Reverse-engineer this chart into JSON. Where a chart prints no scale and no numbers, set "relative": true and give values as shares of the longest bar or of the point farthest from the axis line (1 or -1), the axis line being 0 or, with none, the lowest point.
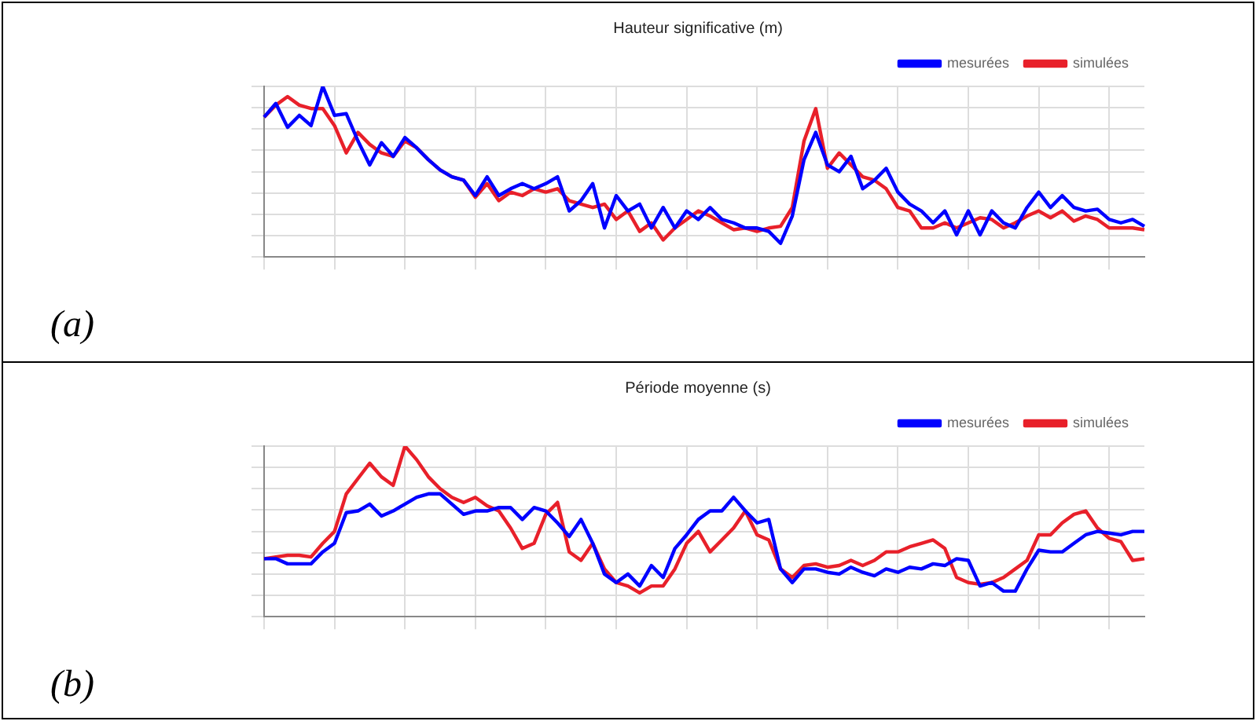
{
  "chart_data": [
    {
      "type": "line",
      "title": "Hauteur significative (m)",
      "relative": true,
      "grid": true,
      "legend": "top right",
      "annotations": [
        "(a)"
      ],
      "categories": [
        null,
        null,
        null,
        null,
        null,
        null,
        null,
        null,
        null,
        null,
        null,
        null,
        null,
        null,
        null,
        null,
        null,
        null,
        null,
        null,
        null,
        null,
        null,
        null,
        null,
        null,
        null,
        null,
        null,
        null,
        null,
        null,
        null,
        null,
        null,
        null,
        null,
        null,
        null,
        null,
        null,
        null,
        null,
        null,
        null,
        null,
        null,
        null,
        null,
        null,
        null,
        null,
        null,
        null,
        null,
        null,
        null,
        null,
        null,
        null,
        null,
        null,
        null,
        null,
        null,
        null,
        null,
        null,
        null,
        null,
        null,
        null,
        null,
        null,
        null,
        null
      ],
      "series": [
        {
          "name": "mesurées",
          "color": "#0000ff",
          "values": [
            0.82,
            0.9,
            0.76,
            0.83,
            0.77,
            1.0,
            0.83,
            0.84,
            0.68,
            0.54,
            0.67,
            0.59,
            0.7,
            0.64,
            0.57,
            0.51,
            0.47,
            0.45,
            0.36,
            0.47,
            0.36,
            0.4,
            0.43,
            0.4,
            0.43,
            0.47,
            0.27,
            0.33,
            0.43,
            0.17,
            0.36,
            0.27,
            0.31,
            0.17,
            0.29,
            0.17,
            0.27,
            0.22,
            0.29,
            0.22,
            0.2,
            0.17,
            0.17,
            0.15,
            0.08,
            0.24,
            0.57,
            0.73,
            0.54,
            0.5,
            0.59,
            0.4,
            0.45,
            0.52,
            0.38,
            0.31,
            0.27,
            0.2,
            0.27,
            0.13,
            0.27,
            0.13,
            0.27,
            0.2,
            0.17,
            0.29,
            0.38,
            0.29,
            0.36,
            0.29,
            0.27,
            0.28,
            0.22,
            0.2,
            0.22,
            0.18
          ]
        },
        {
          "name": "simulées",
          "color": "#e8202a",
          "values": [
            0.82,
            0.89,
            0.94,
            0.89,
            0.87,
            0.87,
            0.77,
            0.61,
            0.73,
            0.66,
            0.61,
            0.59,
            0.68,
            0.64,
            0.57,
            0.51,
            0.47,
            0.45,
            0.35,
            0.43,
            0.33,
            0.38,
            0.36,
            0.4,
            0.38,
            0.4,
            0.33,
            0.31,
            0.29,
            0.31,
            0.22,
            0.27,
            0.15,
            0.2,
            0.1,
            0.17,
            0.22,
            0.27,
            0.24,
            0.2,
            0.16,
            0.17,
            0.15,
            0.17,
            0.18,
            0.29,
            0.68,
            0.87,
            0.52,
            0.61,
            0.54,
            0.47,
            0.45,
            0.4,
            0.29,
            0.27,
            0.17,
            0.17,
            0.2,
            0.17,
            0.2,
            0.23,
            0.22,
            0.17,
            0.2,
            0.24,
            0.27,
            0.23,
            0.27,
            0.21,
            0.24,
            0.22,
            0.17,
            0.17,
            0.17,
            0.16
          ]
        }
      ]
    },
    {
      "type": "line",
      "title": "Période moyenne (s)",
      "relative": true,
      "grid": true,
      "legend": "top right",
      "annotations": [
        "(b)"
      ],
      "categories": [
        null,
        null,
        null,
        null,
        null,
        null,
        null,
        null,
        null,
        null,
        null,
        null,
        null,
        null,
        null,
        null,
        null,
        null,
        null,
        null,
        null,
        null,
        null,
        null,
        null,
        null,
        null,
        null,
        null,
        null,
        null,
        null,
        null,
        null,
        null,
        null,
        null,
        null,
        null,
        null,
        null,
        null,
        null,
        null,
        null,
        null,
        null,
        null,
        null,
        null,
        null,
        null,
        null,
        null,
        null,
        null,
        null,
        null,
        null,
        null,
        null,
        null,
        null,
        null,
        null,
        null,
        null,
        null,
        null,
        null,
        null,
        null,
        null,
        null,
        null,
        null
      ],
      "series": [
        {
          "name": "mesurées",
          "color": "#0000ff",
          "values": [
            0.34,
            0.34,
            0.31,
            0.31,
            0.31,
            0.38,
            0.43,
            0.61,
            0.62,
            0.66,
            0.59,
            0.62,
            0.66,
            0.7,
            0.72,
            0.72,
            0.66,
            0.6,
            0.62,
            0.62,
            0.64,
            0.64,
            0.57,
            0.64,
            0.62,
            0.55,
            0.47,
            0.57,
            0.43,
            0.25,
            0.2,
            0.25,
            0.18,
            0.3,
            0.23,
            0.4,
            0.48,
            0.57,
            0.62,
            0.62,
            0.7,
            0.62,
            0.55,
            0.57,
            0.28,
            0.2,
            0.28,
            0.28,
            0.26,
            0.25,
            0.29,
            0.26,
            0.24,
            0.28,
            0.26,
            0.29,
            0.28,
            0.31,
            0.3,
            0.34,
            0.33,
            0.18,
            0.2,
            0.15,
            0.15,
            0.28,
            0.39,
            0.38,
            0.38,
            0.43,
            0.48,
            0.5,
            0.49,
            0.48,
            0.5,
            0.5
          ]
        },
        {
          "name": "simulées",
          "color": "#e8202a",
          "values": [
            0.34,
            0.35,
            0.36,
            0.36,
            0.35,
            0.43,
            0.5,
            0.72,
            0.81,
            0.9,
            0.82,
            0.77,
            1.0,
            0.92,
            0.82,
            0.75,
            0.7,
            0.67,
            0.7,
            0.65,
            0.62,
            0.52,
            0.4,
            0.43,
            0.6,
            0.67,
            0.38,
            0.33,
            0.43,
            0.28,
            0.2,
            0.18,
            0.14,
            0.18,
            0.18,
            0.28,
            0.43,
            0.5,
            0.38,
            0.45,
            0.52,
            0.62,
            0.48,
            0.45,
            0.28,
            0.23,
            0.3,
            0.31,
            0.29,
            0.3,
            0.33,
            0.3,
            0.33,
            0.38,
            0.38,
            0.41,
            0.43,
            0.45,
            0.4,
            0.23,
            0.2,
            0.19,
            0.2,
            0.23,
            0.28,
            0.33,
            0.48,
            0.48,
            0.55,
            0.6,
            0.62,
            0.52,
            0.46,
            0.44,
            0.33,
            0.34
          ]
        }
      ]
    }
  ]
}
